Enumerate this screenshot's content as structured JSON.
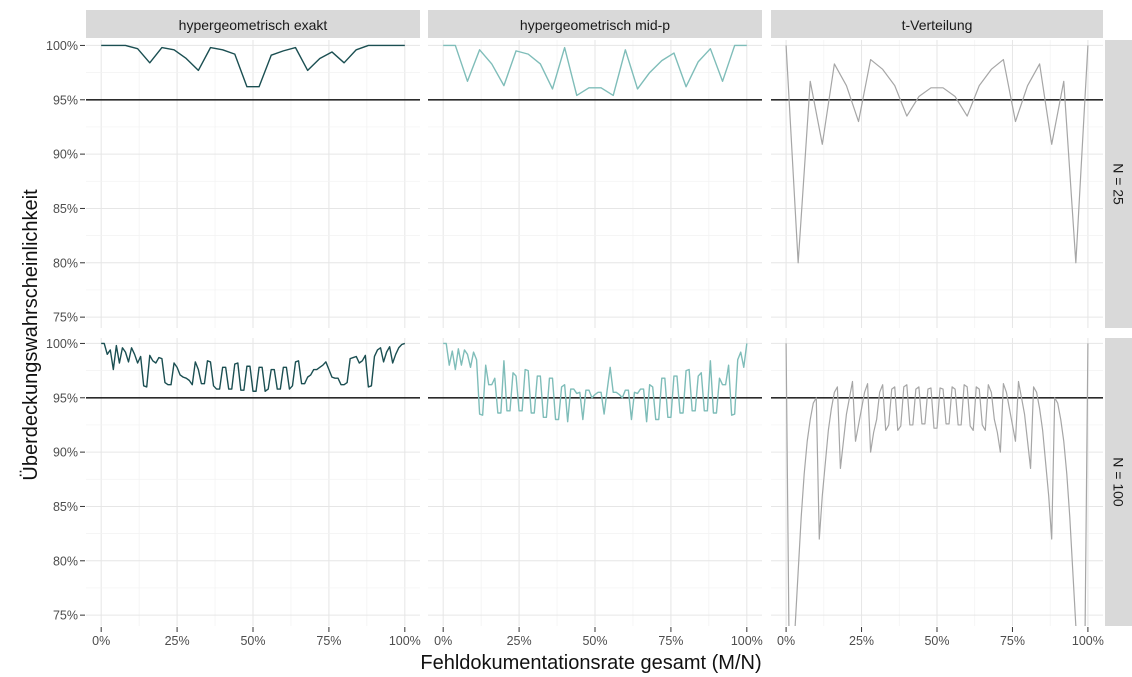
{
  "chart_data": {
    "type": "line",
    "layout": "facet-grid",
    "xlabel": "Fehldokumentationsrate gesamt (M/N)",
    "ylabel": "Überdeckungswahrscheinlichkeit",
    "x_ticks": [
      "0%",
      "25%",
      "50%",
      "75%",
      "100%"
    ],
    "y_ticks": [
      "75%",
      "80%",
      "85%",
      "90%",
      "95%",
      "100%"
    ],
    "xlim": [
      0,
      1
    ],
    "ylim": [
      0.74,
      1.005
    ],
    "grid": true,
    "reference_line": 0.95,
    "columns": [
      "hypergeometrisch exakt",
      "hypergeometrisch mid-p",
      "t-Verteilung"
    ],
    "rows": [
      "N = 25",
      "N = 100"
    ],
    "colors": [
      "#1b4f52",
      "#7fbdb9",
      "#a6a6a6"
    ],
    "panels": [
      {
        "column": 0,
        "row": 0,
        "x": [
          0,
          0.04,
          0.08,
          0.12,
          0.16,
          0.2,
          0.24,
          0.28,
          0.32,
          0.36,
          0.4,
          0.44,
          0.48,
          0.52,
          0.56,
          0.6,
          0.64,
          0.68,
          0.72,
          0.76,
          0.8,
          0.84,
          0.88,
          0.92,
          0.96,
          1
        ],
        "y": [
          1,
          1,
          1,
          0.997,
          0.984,
          0.998,
          0.996,
          0.988,
          0.977,
          0.998,
          0.996,
          0.992,
          0.962,
          0.962,
          0.991,
          0.995,
          0.998,
          0.977,
          0.988,
          0.994,
          0.984,
          0.996,
          1,
          1,
          1,
          1
        ]
      },
      {
        "column": 1,
        "row": 0,
        "x": [
          0,
          0.04,
          0.08,
          0.12,
          0.16,
          0.2,
          0.24,
          0.28,
          0.32,
          0.36,
          0.4,
          0.44,
          0.48,
          0.52,
          0.56,
          0.6,
          0.64,
          0.68,
          0.72,
          0.76,
          0.8,
          0.84,
          0.88,
          0.92,
          0.96,
          1
        ],
        "y": [
          1,
          1,
          0.967,
          0.996,
          0.983,
          0.963,
          0.995,
          0.992,
          0.983,
          0.96,
          0.998,
          0.954,
          0.961,
          0.961,
          0.954,
          0.996,
          0.96,
          0.975,
          0.986,
          0.993,
          0.962,
          0.985,
          0.997,
          0.967,
          1,
          1
        ]
      },
      {
        "column": 2,
        "row": 0,
        "x": [
          0,
          0.04,
          0.08,
          0.12,
          0.16,
          0.2,
          0.24,
          0.28,
          0.32,
          0.36,
          0.4,
          0.44,
          0.48,
          0.52,
          0.56,
          0.6,
          0.64,
          0.68,
          0.72,
          0.76,
          0.8,
          0.84,
          0.88,
          0.92,
          0.96,
          1
        ],
        "y": [
          1,
          0.8,
          0.967,
          0.909,
          0.983,
          0.963,
          0.93,
          0.987,
          0.978,
          0.963,
          0.935,
          0.953,
          0.961,
          0.961,
          0.953,
          0.935,
          0.963,
          0.978,
          0.987,
          0.93,
          0.963,
          0.983,
          0.909,
          0.967,
          0.8,
          1
        ]
      },
      {
        "column": 0,
        "row": 1,
        "x": [
          0,
          0.01,
          0.02,
          0.03,
          0.04,
          0.05,
          0.06,
          0.07,
          0.08,
          0.09,
          0.1,
          0.11,
          0.12,
          0.13,
          0.14,
          0.15,
          0.16,
          0.17,
          0.18,
          0.19,
          0.2,
          0.21,
          0.22,
          0.23,
          0.24,
          0.25,
          0.26,
          0.27,
          0.28,
          0.29,
          0.3,
          0.31,
          0.32,
          0.33,
          0.34,
          0.35,
          0.36,
          0.37,
          0.38,
          0.39,
          0.4,
          0.41,
          0.42,
          0.43,
          0.44,
          0.45,
          0.46,
          0.47,
          0.48,
          0.49,
          0.5,
          0.51,
          0.52,
          0.53,
          0.54,
          0.55,
          0.56,
          0.57,
          0.58,
          0.59,
          0.6,
          0.61,
          0.62,
          0.63,
          0.64,
          0.65,
          0.66,
          0.67,
          0.68,
          0.69,
          0.7,
          0.71,
          0.72,
          0.73,
          0.74,
          0.75,
          0.76,
          0.77,
          0.78,
          0.79,
          0.8,
          0.81,
          0.82,
          0.83,
          0.84,
          0.85,
          0.86,
          0.87,
          0.88,
          0.89,
          0.9,
          0.91,
          0.92,
          0.93,
          0.94,
          0.95,
          0.96,
          0.97,
          0.98,
          0.99,
          1
        ],
        "y": [
          1,
          1,
          0.99,
          0.994,
          0.976,
          0.998,
          0.982,
          0.996,
          0.992,
          0.983,
          0.996,
          0.99,
          0.982,
          0.988,
          0.961,
          0.96,
          0.989,
          0.984,
          0.982,
          0.987,
          0.986,
          0.964,
          0.962,
          0.962,
          0.982,
          0.978,
          0.971,
          0.969,
          0.968,
          0.966,
          0.962,
          0.983,
          0.976,
          0.963,
          0.963,
          0.984,
          0.983,
          0.961,
          0.958,
          0.958,
          0.978,
          0.978,
          0.958,
          0.958,
          0.981,
          0.982,
          0.957,
          0.957,
          0.979,
          0.979,
          0.956,
          0.956,
          0.978,
          0.978,
          0.956,
          0.958,
          0.976,
          0.976,
          0.958,
          0.958,
          0.978,
          0.978,
          0.958,
          0.961,
          0.983,
          0.984,
          0.963,
          0.963,
          0.969,
          0.971,
          0.976,
          0.976,
          0.978,
          0.98,
          0.983,
          0.976,
          0.969,
          0.968,
          0.968,
          0.962,
          0.962,
          0.964,
          0.986,
          0.987,
          0.988,
          0.982,
          0.984,
          0.989,
          0.96,
          0.961,
          0.988,
          0.994,
          0.996,
          0.983,
          0.992,
          0.997,
          0.982,
          0.99,
          0.996,
          0.999,
          1
        ]
      },
      {
        "column": 1,
        "row": 1,
        "x": [
          0,
          0.01,
          0.02,
          0.03,
          0.04,
          0.05,
          0.06,
          0.07,
          0.08,
          0.09,
          0.1,
          0.11,
          0.12,
          0.13,
          0.14,
          0.15,
          0.16,
          0.17,
          0.18,
          0.19,
          0.2,
          0.21,
          0.22,
          0.23,
          0.24,
          0.25,
          0.26,
          0.27,
          0.28,
          0.29,
          0.3,
          0.31,
          0.32,
          0.33,
          0.34,
          0.35,
          0.36,
          0.37,
          0.38,
          0.39,
          0.4,
          0.41,
          0.42,
          0.43,
          0.44,
          0.45,
          0.46,
          0.47,
          0.48,
          0.49,
          0.5,
          0.51,
          0.52,
          0.53,
          0.54,
          0.55,
          0.56,
          0.57,
          0.58,
          0.59,
          0.6,
          0.61,
          0.62,
          0.63,
          0.64,
          0.65,
          0.66,
          0.67,
          0.68,
          0.69,
          0.7,
          0.71,
          0.72,
          0.73,
          0.74,
          0.75,
          0.76,
          0.77,
          0.78,
          0.79,
          0.8,
          0.81,
          0.82,
          0.83,
          0.84,
          0.85,
          0.86,
          0.87,
          0.88,
          0.89,
          0.9,
          0.91,
          0.92,
          0.93,
          0.94,
          0.95,
          0.96,
          0.97,
          0.98,
          0.99,
          1
        ],
        "y": [
          1,
          1,
          0.98,
          0.993,
          0.976,
          0.995,
          0.98,
          0.994,
          0.99,
          0.978,
          0.992,
          0.985,
          0.935,
          0.934,
          0.98,
          0.962,
          0.962,
          0.968,
          0.936,
          0.936,
          0.984,
          0.938,
          0.938,
          0.973,
          0.97,
          0.938,
          0.938,
          0.976,
          0.975,
          0.936,
          0.936,
          0.97,
          0.97,
          0.932,
          0.932,
          0.968,
          0.968,
          0.93,
          0.93,
          0.96,
          0.962,
          0.928,
          0.958,
          0.958,
          0.954,
          0.955,
          0.93,
          0.957,
          0.957,
          0.95,
          0.953,
          0.955,
          0.955,
          0.935,
          0.957,
          0.978,
          0.955,
          0.955,
          0.953,
          0.95,
          0.957,
          0.957,
          0.93,
          0.955,
          0.954,
          0.958,
          0.958,
          0.928,
          0.962,
          0.96,
          0.93,
          0.93,
          0.968,
          0.968,
          0.932,
          0.932,
          0.97,
          0.97,
          0.936,
          0.936,
          0.975,
          0.976,
          0.938,
          0.938,
          0.97,
          0.973,
          0.938,
          0.938,
          0.984,
          0.936,
          0.936,
          0.968,
          0.962,
          0.962,
          0.98,
          0.934,
          0.935,
          0.985,
          0.992,
          0.978,
          1
        ]
      },
      {
        "column": 2,
        "row": 1,
        "x": [
          0,
          0.01,
          0.02,
          0.03,
          0.04,
          0.05,
          0.06,
          0.07,
          0.08,
          0.09,
          0.1,
          0.11,
          0.12,
          0.13,
          0.14,
          0.15,
          0.16,
          0.17,
          0.18,
          0.19,
          0.2,
          0.21,
          0.22,
          0.23,
          0.24,
          0.25,
          0.26,
          0.27,
          0.28,
          0.29,
          0.3,
          0.31,
          0.32,
          0.33,
          0.34,
          0.35,
          0.36,
          0.37,
          0.38,
          0.39,
          0.4,
          0.41,
          0.42,
          0.43,
          0.44,
          0.45,
          0.46,
          0.47,
          0.48,
          0.49,
          0.5,
          0.51,
          0.52,
          0.53,
          0.54,
          0.55,
          0.56,
          0.57,
          0.58,
          0.59,
          0.6,
          0.61,
          0.62,
          0.63,
          0.64,
          0.65,
          0.66,
          0.67,
          0.68,
          0.69,
          0.7,
          0.71,
          0.72,
          0.73,
          0.74,
          0.75,
          0.76,
          0.77,
          0.78,
          0.79,
          0.8,
          0.81,
          0.82,
          0.83,
          0.84,
          0.85,
          0.86,
          0.87,
          0.88,
          0.89,
          0.9,
          0.91,
          0.92,
          0.93,
          0.94,
          0.95,
          0.96,
          0.97,
          0.98,
          0.99,
          1
        ],
        "y": [
          1,
          0.72,
          0.72,
          0.74,
          0.79,
          0.84,
          0.88,
          0.91,
          0.93,
          0.945,
          0.95,
          0.82,
          0.86,
          0.89,
          0.92,
          0.94,
          0.955,
          0.96,
          0.885,
          0.91,
          0.935,
          0.95,
          0.965,
          0.91,
          0.925,
          0.94,
          0.955,
          0.963,
          0.9,
          0.918,
          0.93,
          0.955,
          0.962,
          0.92,
          0.925,
          0.958,
          0.96,
          0.92,
          0.924,
          0.96,
          0.962,
          0.925,
          0.925,
          0.958,
          0.96,
          0.926,
          0.926,
          0.958,
          0.959,
          0.922,
          0.922,
          0.959,
          0.958,
          0.926,
          0.926,
          0.96,
          0.958,
          0.925,
          0.925,
          0.962,
          0.96,
          0.924,
          0.92,
          0.96,
          0.958,
          0.925,
          0.92,
          0.962,
          0.955,
          0.93,
          0.918,
          0.9,
          0.963,
          0.955,
          0.94,
          0.925,
          0.91,
          0.965,
          0.95,
          0.935,
          0.91,
          0.885,
          0.96,
          0.955,
          0.94,
          0.92,
          0.89,
          0.86,
          0.82,
          0.95,
          0.945,
          0.93,
          0.91,
          0.88,
          0.84,
          0.79,
          0.74,
          0.72,
          0.72,
          0.72,
          1
        ]
      }
    ]
  }
}
